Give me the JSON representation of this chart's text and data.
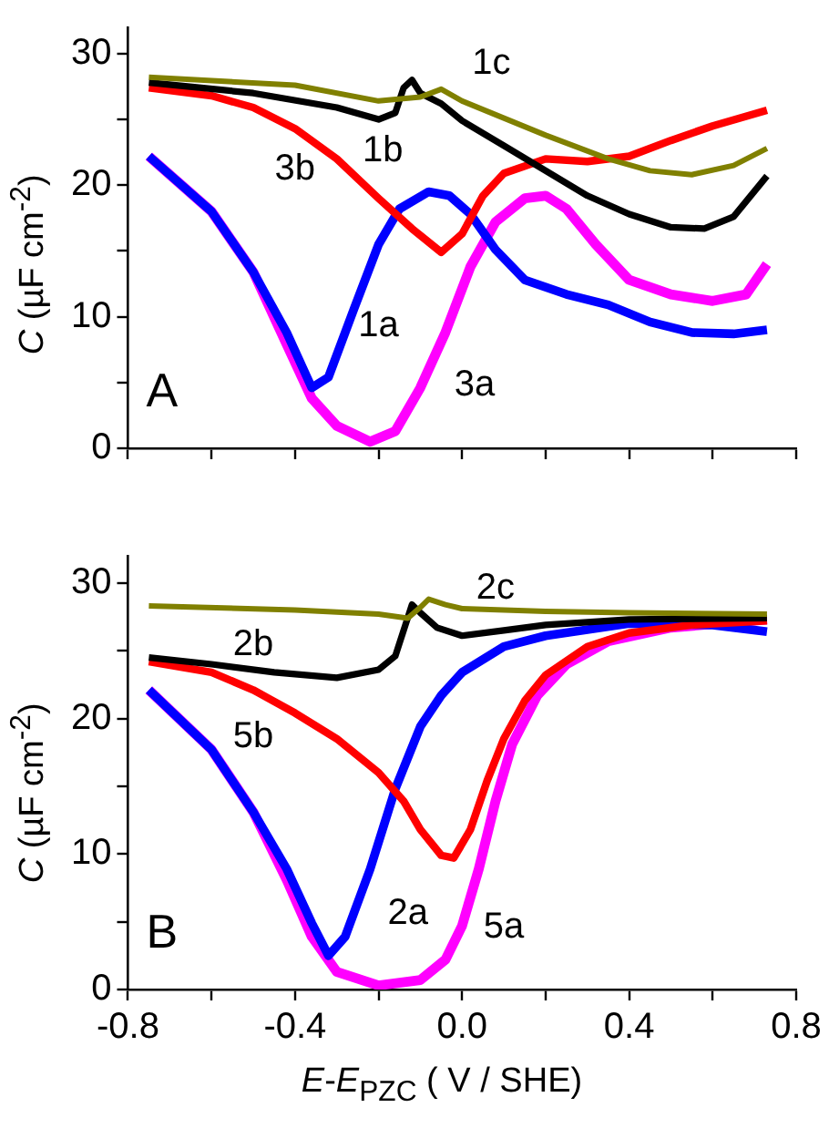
{
  "chart_data": [
    {
      "type": "line",
      "ylabel": "C (µF cm$^{-2}$)",
      "annotations": [
        "A"
      ],
      "xlim": [
        -0.8,
        0.8
      ],
      "ylim": [
        0,
        32
      ],
      "xticks": [
        -0.8,
        -0.6,
        -0.4,
        -0.2,
        0,
        0.2,
        0.4,
        0.6,
        0.8
      ],
      "yticks": [
        0,
        {
          "value": 5,
          "label": null
        },
        10,
        {
          "value": 15,
          "label": null
        },
        20,
        {
          "value": 25,
          "label": null
        },
        30
      ],
      "tick_labels": "y",
      "grid": false,
      "legend": false,
      "marker": "none",
      "line_style": "solid",
      "series": [
        {
          "name": "1c",
          "color": "#808000",
          "x": [
            -0.75,
            -0.4,
            -0.2,
            -0.1,
            -0.05,
            0,
            0.2,
            0.35,
            0.45,
            0.55,
            0.65,
            0.73
          ],
          "values": [
            28.2,
            27.6,
            26.4,
            26.7,
            27.3,
            26.4,
            23.8,
            22.0,
            21.1,
            20.8,
            21.5,
            22.8
          ]
        },
        {
          "name": "1b",
          "color": "#000000",
          "x": [
            -0.75,
            -0.5,
            -0.3,
            -0.2,
            -0.16,
            -0.14,
            -0.12,
            -0.1,
            -0.05,
            0,
            0.1,
            0.2,
            0.3,
            0.4,
            0.5,
            0.58,
            0.65,
            0.73
          ],
          "values": [
            27.8,
            27.0,
            25.9,
            25.0,
            25.5,
            27.4,
            28.0,
            27.0,
            26.2,
            24.9,
            23.0,
            21.1,
            19.2,
            17.8,
            16.8,
            16.7,
            17.6,
            20.7
          ]
        },
        {
          "name": "3b",
          "color": "#ff0000",
          "x": [
            -0.75,
            -0.6,
            -0.5,
            -0.4,
            -0.3,
            -0.2,
            -0.12,
            -0.05,
            0,
            0.05,
            0.1,
            0.2,
            0.3,
            0.4,
            0.5,
            0.6,
            0.73
          ],
          "values": [
            27.4,
            26.8,
            25.9,
            24.3,
            22.0,
            19.0,
            16.7,
            14.9,
            16.3,
            19.2,
            20.9,
            22.0,
            21.8,
            22.2,
            23.4,
            24.5,
            25.7
          ]
        },
        {
          "name": "1a",
          "color": "#0000ff",
          "x": [
            -0.75,
            -0.6,
            -0.5,
            -0.42,
            -0.36,
            -0.32,
            -0.26,
            -0.2,
            -0.15,
            -0.08,
            -0.03,
            0.02,
            0.08,
            0.15,
            0.25,
            0.35,
            0.45,
            0.55,
            0.65,
            0.73
          ],
          "values": [
            22.2,
            18.0,
            13.4,
            8.8,
            4.6,
            5.4,
            10.5,
            15.5,
            18.2,
            19.5,
            19.2,
            17.8,
            15.1,
            12.8,
            11.7,
            10.9,
            9.6,
            8.8,
            8.7,
            9.0
          ]
        },
        {
          "name": "3a",
          "color": "#ff00ff",
          "x": [
            -0.75,
            -0.6,
            -0.5,
            -0.42,
            -0.36,
            -0.3,
            -0.22,
            -0.16,
            -0.1,
            -0.04,
            0.02,
            0.08,
            0.15,
            0.2,
            0.25,
            0.32,
            0.4,
            0.5,
            0.6,
            0.68,
            0.73
          ],
          "values": [
            22.2,
            18.0,
            13.4,
            7.9,
            3.8,
            1.7,
            0.5,
            1.3,
            4.6,
            8.8,
            13.8,
            17.2,
            19.0,
            19.2,
            18.2,
            15.5,
            12.8,
            11.7,
            11.2,
            11.7,
            14.0
          ]
        }
      ]
    },
    {
      "type": "line",
      "xlabel": "E-E$_{PZC}$ ( V / SHE)",
      "ylabel": "C (µF cm$^{-2}$)",
      "annotations": [
        "B"
      ],
      "xlim": [
        -0.8,
        0.8
      ],
      "ylim": [
        0,
        32
      ],
      "xticks": [
        -0.8,
        {
          "value": -0.6,
          "label": null
        },
        -0.4,
        {
          "value": -0.2,
          "label": null
        },
        {
          "value": 0,
          "label": "0.0"
        },
        {
          "value": 0.2,
          "label": null
        },
        0.4,
        {
          "value": 0.6,
          "label": null
        },
        0.8
      ],
      "yticks": [
        0,
        {
          "value": 5,
          "label": null
        },
        10,
        {
          "value": 15,
          "label": null
        },
        20,
        {
          "value": 25,
          "label": null
        },
        30
      ],
      "grid": false,
      "legend": false,
      "marker": "none",
      "line_style": "solid",
      "series": [
        {
          "name": "2c",
          "color": "#808000",
          "x": [
            -0.75,
            -0.4,
            -0.2,
            -0.13,
            -0.1,
            -0.08,
            -0.04,
            0,
            0.2,
            0.4,
            0.73
          ],
          "values": [
            28.3,
            28.0,
            27.7,
            27.4,
            28.2,
            28.8,
            28.4,
            28.1,
            27.9,
            27.8,
            27.7
          ]
        },
        {
          "name": "2b",
          "color": "#000000",
          "x": [
            -0.75,
            -0.6,
            -0.45,
            -0.3,
            -0.2,
            -0.16,
            -0.14,
            -0.12,
            -0.1,
            -0.06,
            0,
            0.1,
            0.2,
            0.4,
            0.73
          ],
          "values": [
            24.5,
            24.0,
            23.4,
            23.0,
            23.6,
            24.6,
            26.5,
            28.4,
            27.8,
            26.7,
            26.1,
            26.5,
            26.9,
            27.3,
            27.4
          ]
        },
        {
          "name": "5b",
          "color": "#ff0000",
          "x": [
            -0.75,
            -0.6,
            -0.5,
            -0.4,
            -0.3,
            -0.2,
            -0.14,
            -0.1,
            -0.05,
            -0.02,
            0.02,
            0.06,
            0.1,
            0.15,
            0.2,
            0.3,
            0.4,
            0.55,
            0.73
          ],
          "values": [
            24.2,
            23.4,
            22.1,
            20.4,
            18.5,
            16.0,
            13.9,
            11.8,
            9.9,
            9.7,
            11.8,
            15.4,
            18.5,
            21.3,
            23.2,
            25.3,
            26.3,
            26.9,
            27.2
          ]
        },
        {
          "name": "2a",
          "color": "#0000ff",
          "x": [
            -0.75,
            -0.6,
            -0.5,
            -0.42,
            -0.36,
            -0.32,
            -0.28,
            -0.22,
            -0.16,
            -0.1,
            -0.05,
            0,
            0.1,
            0.2,
            0.4,
            0.6,
            0.73
          ],
          "values": [
            22.1,
            17.7,
            13.1,
            8.9,
            4.9,
            2.5,
            3.9,
            8.9,
            14.8,
            19.4,
            21.7,
            23.4,
            25.3,
            26.1,
            27.0,
            26.9,
            26.4
          ]
        },
        {
          "name": "5a",
          "color": "#ff00ff",
          "x": [
            -0.75,
            -0.6,
            -0.5,
            -0.42,
            -0.36,
            -0.3,
            -0.2,
            -0.1,
            -0.04,
            0,
            0.04,
            0.08,
            0.12,
            0.18,
            0.25,
            0.35,
            0.5,
            0.73
          ],
          "values": [
            22.1,
            17.7,
            13.1,
            8.1,
            3.9,
            1.3,
            0.3,
            0.7,
            2.2,
            4.7,
            8.9,
            13.9,
            18.1,
            21.7,
            24.0,
            25.7,
            26.7,
            27.3
          ]
        }
      ]
    }
  ]
}
